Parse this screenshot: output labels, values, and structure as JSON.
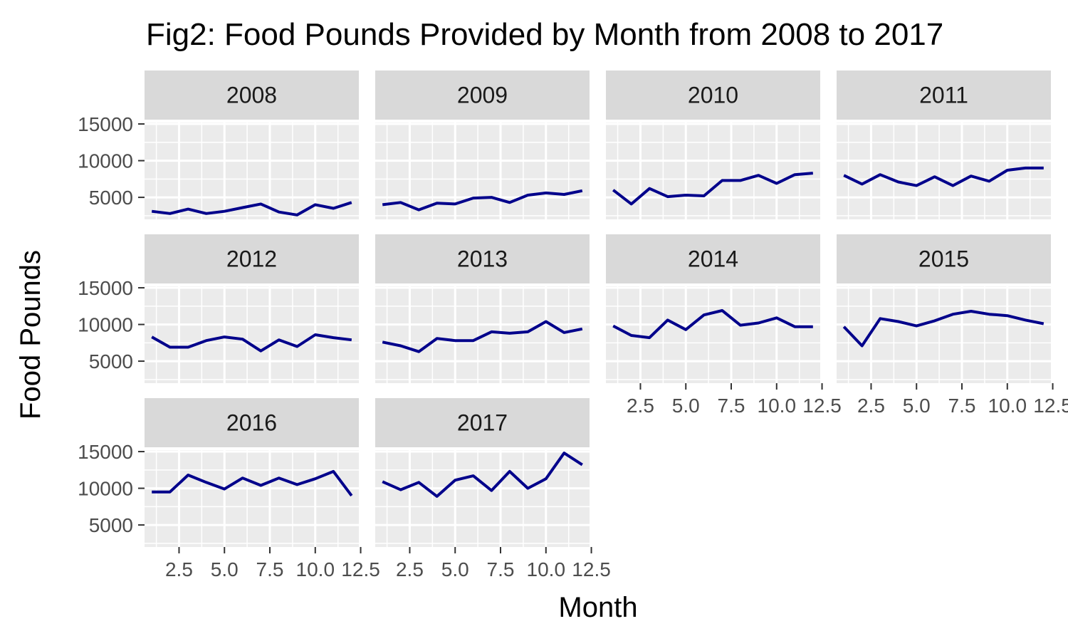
{
  "chart_data": {
    "type": "line",
    "facet": "year",
    "title": "Fig2: Food Pounds Provided by Month from 2008 to 2017",
    "xlabel": "Month",
    "ylabel": "Food Pounds",
    "x": [
      1,
      2,
      3,
      4,
      5,
      6,
      7,
      8,
      9,
      10,
      11,
      12
    ],
    "xticks": [
      2.5,
      5.0,
      7.5,
      10.0,
      12.5
    ],
    "xtick_labels": [
      "2.5",
      "5.0",
      "7.5",
      "10.0",
      "12.5"
    ],
    "xlim": [
      0.6,
      12.4
    ],
    "yticks": [
      5000,
      10000,
      15000
    ],
    "ytick_labels": [
      "5000",
      "10000",
      "15000"
    ],
    "ylim": [
      2000,
      15200
    ],
    "grid": true,
    "line_color": "#00008b",
    "panel_bg": "#ebebeb",
    "strip_bg": "#d9d9d9",
    "panels": [
      {
        "strip": "2008",
        "values": [
          3100,
          2800,
          3400,
          2800,
          3100,
          3600,
          4100,
          3000,
          2600,
          4000,
          3500,
          4300
        ]
      },
      {
        "strip": "2009",
        "values": [
          4000,
          4300,
          3300,
          4200,
          4100,
          4900,
          5000,
          4300,
          5300,
          5600,
          5400,
          5900
        ]
      },
      {
        "strip": "2010",
        "values": [
          6000,
          4100,
          6200,
          5100,
          5300,
          5200,
          7300,
          7300,
          8000,
          6900,
          8100,
          8300
        ]
      },
      {
        "strip": "2011",
        "values": [
          8000,
          6800,
          8100,
          7100,
          6600,
          7800,
          6600,
          7900,
          7200,
          8700,
          9000,
          9000
        ]
      },
      {
        "strip": "2012",
        "values": [
          8300,
          6900,
          6900,
          7800,
          8300,
          8000,
          6400,
          7900,
          7000,
          8600,
          8200,
          7900
        ]
      },
      {
        "strip": "2013",
        "values": [
          7600,
          7100,
          6300,
          8100,
          7800,
          7800,
          9000,
          8800,
          9000,
          10400,
          8900,
          9400
        ]
      },
      {
        "strip": "2014",
        "values": [
          9800,
          8500,
          8200,
          10600,
          9300,
          11300,
          11900,
          9900,
          10200,
          10900,
          9700,
          9700
        ]
      },
      {
        "strip": "2015",
        "values": [
          9700,
          7100,
          10800,
          10400,
          9800,
          10500,
          11400,
          11800,
          11400,
          11200,
          10600,
          10100
        ]
      },
      {
        "strip": "2016",
        "values": [
          9500,
          9500,
          11800,
          10800,
          9900,
          11400,
          10400,
          11400,
          10500,
          11300,
          12300,
          9000
        ]
      },
      {
        "strip": "2017",
        "values": [
          10900,
          9800,
          10800,
          8900,
          11100,
          11700,
          9700,
          12300,
          10000,
          11300,
          14800,
          13200
        ]
      }
    ]
  }
}
